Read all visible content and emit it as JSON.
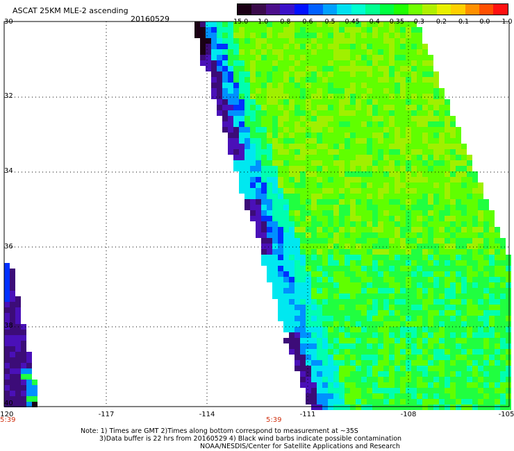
{
  "header": {
    "title": "ASCAT 25KM MLE-2 ascending",
    "date": "20160529"
  },
  "colorbar": {
    "labels": [
      "-15.0",
      "-1.0",
      "-0.8",
      "-0.6",
      "-0.5",
      "-0.45",
      "-0.4",
      "-0.35",
      "-0.3",
      "-0.2",
      "-0.1",
      "0.0",
      "1.0"
    ],
    "colors": [
      "#1a0014",
      "#3a0a4a",
      "#4b0e8a",
      "#3a10c8",
      "#0010ff",
      "#0060ff",
      "#00a0ff",
      "#00e0f0",
      "#00ffd0",
      "#00ff90",
      "#00ff40",
      "#20ff00",
      "#70ff00",
      "#b0f000",
      "#e8f000",
      "#ffd000",
      "#ff9000",
      "#ff5000",
      "#ff1010"
    ]
  },
  "axes": {
    "x_labels": [
      "-120",
      "-117",
      "-114",
      "-111",
      "-108",
      "-105"
    ],
    "y_labels": [
      "30",
      "32",
      "34",
      "36",
      "38",
      "40"
    ],
    "x_range": [
      -120,
      -105
    ],
    "y_range": [
      30,
      40
    ]
  },
  "times": {
    "left": "5:39",
    "middle": "5:39"
  },
  "note": {
    "line1": "Note: 1) Times are GMT 2)Times along bottom correspond to measurement at ~35S",
    "line2": "3)Data buffer is 22 hrs from 20160529 4) Black wind barbs indicate possible contamination",
    "line3": "NOAA/NESDIS/Center for Satellite Applications and Research"
  },
  "palette": {
    "black": "#1a0014",
    "purple": "#3c0c78",
    "violet": "#4a10b8",
    "blue": "#0030ff",
    "lightblue": "#0090ff",
    "cyan": "#00e8f0",
    "aqua": "#00ffb0",
    "green": "#20ff40",
    "lime": "#60ff00",
    "yellowgreen": "#a0f000"
  }
}
